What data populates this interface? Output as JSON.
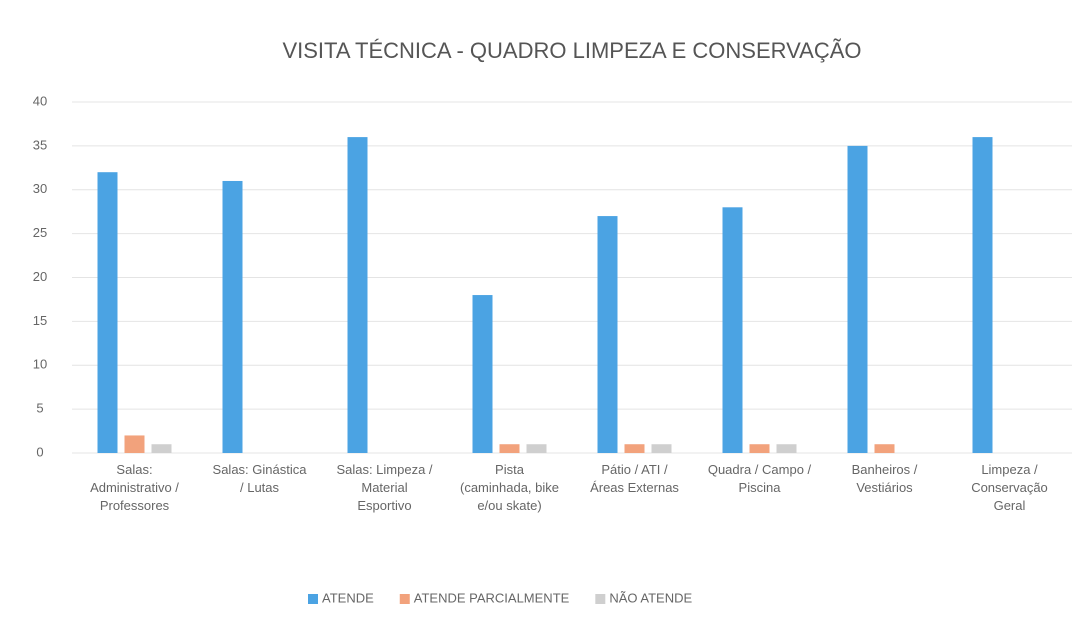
{
  "chart_data": {
    "type": "bar",
    "title": "VISITA TÉCNICA - QUADRO LIMPEZA E CONSERVAÇÃO",
    "categories": [
      "Salas: Administrativo / Professores",
      "Salas: Ginástica / Lutas",
      "Salas: Limpeza / Material Esportivo",
      "Pista (caminhada, bike e/ou skate)",
      "Pátio / ATI / Áreas Externas",
      "Quadra / Campo / Piscina",
      "Banheiros / Vestiários",
      "Limpeza / Conservação Geral"
    ],
    "series": [
      {
        "name": "ATENDE",
        "color": "#4ba3e3",
        "values": [
          32,
          31,
          36,
          18,
          27,
          28,
          35,
          36
        ]
      },
      {
        "name": "ATENDE PARCIALMENTE",
        "color": "#f2a27c",
        "values": [
          2,
          0,
          0,
          1,
          1,
          1,
          1,
          0
        ]
      },
      {
        "name": "NÃO ATENDE",
        "color": "#cfcfcf",
        "values": [
          1,
          0,
          0,
          1,
          1,
          1,
          0,
          0
        ]
      }
    ],
    "ylim": [
      0,
      40
    ],
    "yticks": [
      0,
      5,
      10,
      15,
      20,
      25,
      30,
      35,
      40
    ],
    "grid": true,
    "legend": "bottom"
  }
}
